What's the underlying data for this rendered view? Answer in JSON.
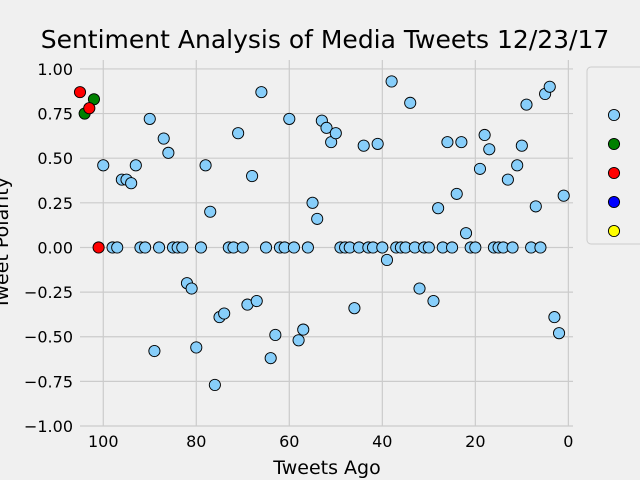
{
  "chart_data": {
    "type": "scatter",
    "title": "Sentiment Analysis of Media Tweets 12/23/17",
    "xlabel": "Tweets Ago",
    "ylabel": "Tweet Polarity",
    "xlim": [
      105,
      -1
    ],
    "ylim": [
      -1.0,
      1.05
    ],
    "x_ticks": [
      "100",
      "80",
      "60",
      "40",
      "20",
      "0"
    ],
    "x_tick_values": [
      100,
      80,
      60,
      40,
      20,
      0
    ],
    "y_ticks": [
      "−1.00",
      "−0.75",
      "−0.50",
      "−0.25",
      "0.00",
      "0.25",
      "0.50",
      "0.75",
      "1.00"
    ],
    "y_tick_values": [
      -1.0,
      -0.75,
      -0.5,
      -0.25,
      0.0,
      0.25,
      0.5,
      0.75,
      1.0
    ],
    "grid": true,
    "legend_position": "right (labels cut off)",
    "series": [
      {
        "color": "#87cefa",
        "points": [
          [
            100,
            0.46
          ],
          [
            98,
            0.0
          ],
          [
            97,
            0.0
          ],
          [
            96,
            0.38
          ],
          [
            95,
            0.38
          ],
          [
            94,
            0.36
          ],
          [
            93,
            0.46
          ],
          [
            92,
            0.0
          ],
          [
            91,
            0.0
          ],
          [
            90,
            0.72
          ],
          [
            89,
            -0.58
          ],
          [
            88,
            0.0
          ],
          [
            87,
            0.61
          ],
          [
            86,
            0.53
          ],
          [
            85,
            0.0
          ],
          [
            84,
            0.0
          ],
          [
            83,
            0.0
          ],
          [
            82,
            -0.2
          ],
          [
            81,
            -0.23
          ],
          [
            80,
            -0.56
          ],
          [
            79,
            0.0
          ],
          [
            78,
            0.46
          ],
          [
            77,
            0.2
          ],
          [
            76,
            -0.77
          ],
          [
            75,
            -0.39
          ],
          [
            74,
            -0.37
          ],
          [
            73,
            0.0
          ],
          [
            72,
            0.0
          ],
          [
            71,
            0.64
          ],
          [
            70,
            0.0
          ],
          [
            69,
            -0.32
          ],
          [
            68,
            0.4
          ],
          [
            67,
            -0.3
          ],
          [
            66,
            0.87
          ],
          [
            65,
            0.0
          ],
          [
            64,
            -0.62
          ],
          [
            63,
            -0.49
          ],
          [
            62,
            0.0
          ],
          [
            61,
            0.0
          ],
          [
            60,
            0.72
          ],
          [
            59,
            0.0
          ],
          [
            58,
            -0.52
          ],
          [
            57,
            -0.46
          ],
          [
            56,
            0.0
          ],
          [
            55,
            0.25
          ],
          [
            54,
            0.16
          ],
          [
            53,
            0.71
          ],
          [
            52,
            0.67
          ],
          [
            51,
            0.59
          ],
          [
            50,
            0.64
          ],
          [
            49,
            0.0
          ],
          [
            48,
            0.0
          ],
          [
            47,
            0.0
          ],
          [
            46,
            -0.34
          ],
          [
            45,
            0.0
          ],
          [
            44,
            0.57
          ],
          [
            43,
            0.0
          ],
          [
            42,
            0.0
          ],
          [
            41,
            0.58
          ],
          [
            40,
            0.0
          ],
          [
            39,
            -0.07
          ],
          [
            38,
            0.93
          ],
          [
            37,
            0.0
          ],
          [
            36,
            0.0
          ],
          [
            35,
            0.0
          ],
          [
            34,
            0.81
          ],
          [
            33,
            0.0
          ],
          [
            32,
            -0.23
          ],
          [
            31,
            0.0
          ],
          [
            30,
            0.0
          ],
          [
            29,
            -0.3
          ],
          [
            28,
            0.22
          ],
          [
            27,
            0.0
          ],
          [
            26,
            0.59
          ],
          [
            25,
            0.0
          ],
          [
            24,
            0.3
          ],
          [
            23,
            0.59
          ],
          [
            22,
            0.08
          ],
          [
            21,
            0.0
          ],
          [
            20,
            0.0
          ],
          [
            19,
            0.44
          ],
          [
            18,
            0.63
          ],
          [
            17,
            0.55
          ],
          [
            16,
            0.0
          ],
          [
            15,
            0.0
          ],
          [
            14,
            0.0
          ],
          [
            13,
            0.38
          ],
          [
            12,
            0.0
          ],
          [
            11,
            0.46
          ],
          [
            10,
            0.57
          ],
          [
            9,
            0.8
          ],
          [
            8,
            0.0
          ],
          [
            7,
            0.23
          ],
          [
            6,
            0.0
          ],
          [
            5,
            0.86
          ],
          [
            4,
            0.9
          ],
          [
            3,
            -0.39
          ],
          [
            2,
            -0.48
          ],
          [
            1,
            0.29
          ]
        ]
      },
      {
        "color": "#008000",
        "points": [
          [
            104,
            0.75
          ],
          [
            102,
            0.83
          ]
        ]
      },
      {
        "color": "#ff0000",
        "points": [
          [
            105,
            0.87
          ],
          [
            103,
            0.78
          ],
          [
            101,
            0.0
          ]
        ]
      },
      {
        "color": "#0000ff",
        "points": []
      },
      {
        "color": "#ffff00",
        "points": []
      }
    ]
  },
  "legend": {
    "entries": [
      {
        "color": "#87cefa",
        "icon": "circle-marker-icon"
      },
      {
        "color": "#008000",
        "icon": "circle-marker-icon"
      },
      {
        "color": "#ff0000",
        "icon": "circle-marker-icon"
      },
      {
        "color": "#0000ff",
        "icon": "circle-marker-icon"
      },
      {
        "color": "#ffff00",
        "icon": "circle-marker-icon"
      }
    ]
  }
}
